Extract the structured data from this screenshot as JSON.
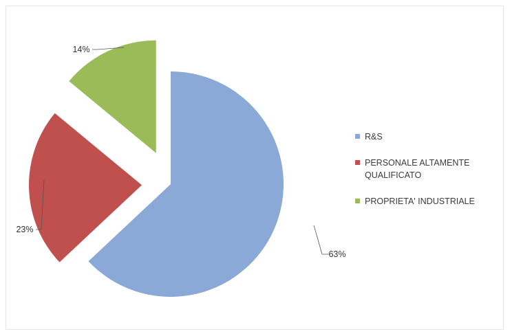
{
  "chart_data": {
    "type": "pie",
    "exploded": true,
    "categories": [
      "R&S",
      "PERSONALE ALTAMENTE QUALIFICATO",
      "PROPRIETA' INDUSTRIALE"
    ],
    "values": [
      63,
      23,
      14
    ],
    "value_labels": [
      "63%",
      "23%",
      "14%"
    ],
    "colors": [
      "#8aa9d6",
      "#c0504d",
      "#9bbb59"
    ],
    "legend_position": "right"
  }
}
